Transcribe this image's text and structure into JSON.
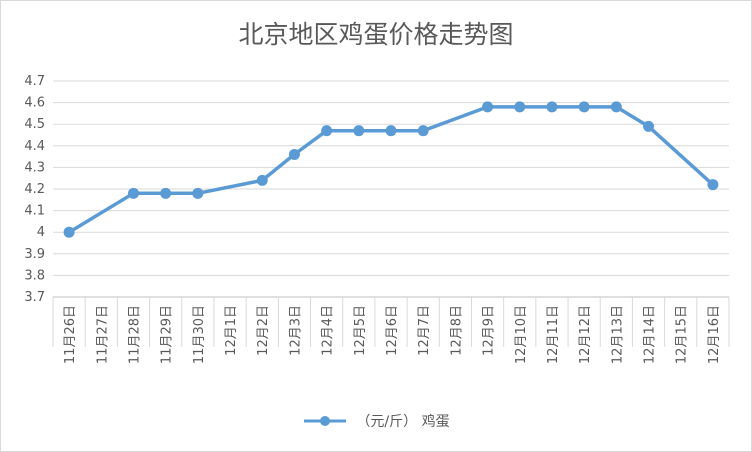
{
  "chart_data": {
    "type": "line",
    "title": "北京地区鸡蛋价格走势图",
    "categories": [
      "11月26日",
      "11月27日",
      "11月28日",
      "11月29日",
      "11月30日",
      "12月1日",
      "12月2日",
      "12月3日",
      "12月4日",
      "12月5日",
      "12月6日",
      "12月7日",
      "12月8日",
      "12月9日",
      "12月10日",
      "12月11日",
      "12月12日",
      "12月13日",
      "12月14日",
      "12月15日",
      "12月16日"
    ],
    "series": [
      {
        "name": "（元/斤） 鸡蛋",
        "color": "#5b9bd5",
        "values": [
          4.0,
          null,
          4.18,
          4.18,
          4.18,
          null,
          4.24,
          4.36,
          4.47,
          4.47,
          4.47,
          4.47,
          null,
          4.58,
          4.58,
          4.58,
          4.58,
          4.58,
          4.49,
          null,
          4.22
        ]
      }
    ],
    "ylim": [
      3.7,
      4.7
    ],
    "yticks": [
      "3.7",
      "3.8",
      "3.9",
      "4",
      "4.1",
      "4.2",
      "4.3",
      "4.4",
      "4.5",
      "4.6",
      "4.7"
    ],
    "grid": true,
    "legend_position": "bottom"
  }
}
